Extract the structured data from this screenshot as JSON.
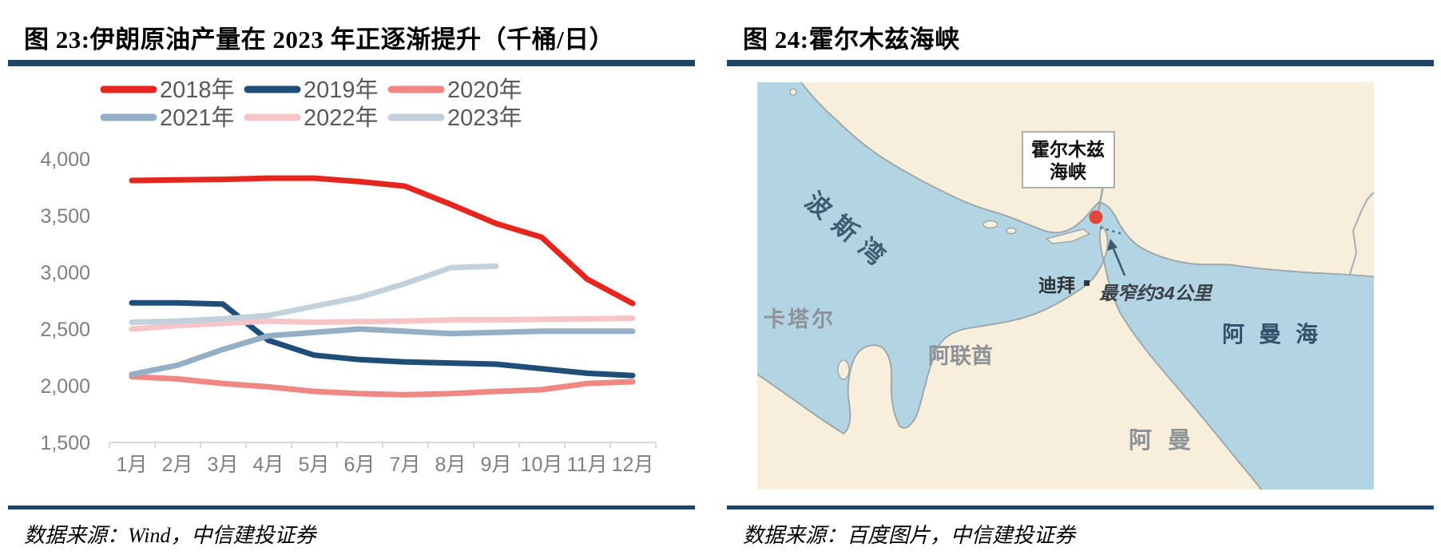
{
  "figures": {
    "left": {
      "title": "图 23:伊朗原油产量在 2023 年正逐渐提升（千桶/日）",
      "source": "数据来源：Wind，中信建投证券"
    },
    "right": {
      "title": "图 24:霍尔木兹海峡",
      "source": "数据来源：百度图片，中信建投证券"
    }
  },
  "chart_data": {
    "type": "line",
    "title": "伊朗原油产量（千桶/日）",
    "unit": "千桶/日",
    "x": [
      "1月",
      "2月",
      "3月",
      "4月",
      "5月",
      "6月",
      "7月",
      "8月",
      "9月",
      "10月",
      "11月",
      "12月"
    ],
    "series": [
      {
        "name": "2018年",
        "color": "#E5261F",
        "values": [
          3810,
          3815,
          3820,
          3830,
          3830,
          3800,
          3760,
          3600,
          3430,
          3310,
          2940,
          2725
        ]
      },
      {
        "name": "2019年",
        "color": "#1F4E79",
        "values": [
          2730,
          2730,
          2720,
          2400,
          2270,
          2230,
          2210,
          2200,
          2190,
          2150,
          2110,
          2090
        ]
      },
      {
        "name": "2020年",
        "color": "#EF8783",
        "values": [
          2080,
          2060,
          2020,
          1990,
          1950,
          1930,
          1920,
          1930,
          1950,
          1965,
          2020,
          2035
        ]
      },
      {
        "name": "2021年",
        "color": "#94AFC5",
        "values": [
          2100,
          2180,
          2320,
          2440,
          2470,
          2500,
          2480,
          2460,
          2470,
          2480,
          2480,
          2480
        ]
      },
      {
        "name": "2022年",
        "color": "#F7C5C7",
        "values": [
          2500,
          2530,
          2550,
          2570,
          2560,
          2565,
          2570,
          2580,
          2580,
          2585,
          2590,
          2595
        ]
      },
      {
        "name": "2023年",
        "color": "#C2D1DC",
        "values": [
          2560,
          2570,
          2590,
          2620,
          2700,
          2780,
          2900,
          3040,
          3055
        ]
      }
    ],
    "ylim": [
      1500,
      4000
    ],
    "ytick_step": 500,
    "ytick_labels": [
      "4,000",
      "3,500",
      "3,000",
      "2,500",
      "2,000",
      "1,500"
    ],
    "grid": false,
    "legend_position": "top"
  },
  "map": {
    "sea_color": "#B3D4E3",
    "land_color": "#F7EFDC",
    "marker_color": "#E2453A",
    "labels": {
      "persian_gulf": "波斯湾",
      "qatar": "卡塔尔",
      "dubai": "迪拜",
      "uae": "阿联酋",
      "oman": "阿曼",
      "gulf_of_oman": "阿曼海",
      "callout_line1": "霍尔木兹",
      "callout_line2": "海峡",
      "annotation": "最窄约34公里"
    }
  }
}
